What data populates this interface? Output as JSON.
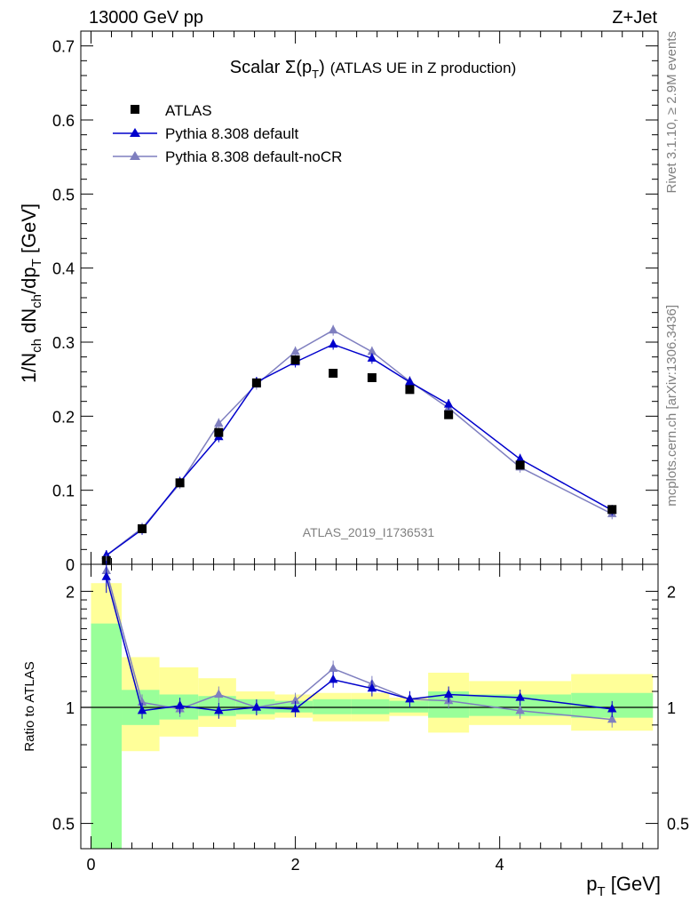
{
  "header": {
    "left": "13000 GeV pp",
    "right": "Z+Jet"
  },
  "side_text": {
    "rivet": "Rivet 3.1.10, ≥ 2.9M events",
    "mcplots": "mcplots.cern.ch [arXiv:1306.3436]"
  },
  "title_main": "Scalar Σ(p",
  "title_sub": "T",
  "title_close": ")",
  "title_rest": "(ATLAS UE in Z production)",
  "watermark": "ATLAS_2019_I1736531",
  "ylabel_top": {
    "a": "1/N",
    "b": "ch",
    "c": " dN",
    "d": "ch",
    "e": "/dp",
    "f": "T",
    "g": " [GeV]"
  },
  "ylabel_bottom": "Ratio to ATLAS",
  "xlabel": {
    "a": "p",
    "b": "T",
    "c": " [GeV]"
  },
  "colors": {
    "data": "#000000",
    "pythia_default": "#0000cc",
    "pythia_nocr": "#7f7fbf",
    "band_inner": "#99ff99",
    "band_outer": "#ffff99"
  },
  "chart_data": [
    {
      "type": "scatter",
      "xlim": [
        -0.1,
        5.55
      ],
      "ylim": [
        0,
        0.72
      ],
      "yticks": [
        "0",
        "0.1",
        "0.2",
        "0.3",
        "0.4",
        "0.5",
        "0.6",
        "0.7"
      ],
      "legend_position": "top-left",
      "legend": [
        "ATLAS",
        "Pythia 8.308 default",
        "Pythia 8.308 default-noCR"
      ],
      "x": [
        0.15,
        0.5,
        0.87,
        1.25,
        1.62,
        2.0,
        2.37,
        2.75,
        3.12,
        3.5,
        4.2,
        5.1
      ],
      "series": [
        {
          "name": "ATLAS",
          "values": [
            0.005,
            0.048,
            0.11,
            0.178,
            0.245,
            0.276,
            0.258,
            0.252,
            0.236,
            0.202,
            0.134,
            0.074
          ]
        },
        {
          "name": "Pythia 8.308 default",
          "values": [
            0.012,
            0.047,
            0.111,
            0.172,
            0.246,
            0.273,
            0.297,
            0.278,
            0.246,
            0.216,
            0.142,
            0.073
          ]
        },
        {
          "name": "Pythia 8.308 default-noCR",
          "values": [
            0.012,
            0.049,
            0.109,
            0.19,
            0.243,
            0.287,
            0.316,
            0.287,
            0.247,
            0.211,
            0.131,
            0.068
          ]
        }
      ]
    },
    {
      "type": "line",
      "ylabel": "Ratio to ATLAS",
      "xlabel": "p_T [GeV]",
      "xticks": [
        "0",
        "2",
        "4"
      ],
      "yticks": [
        "0.5",
        "1",
        "2"
      ],
      "ylim": [
        0.43,
        2.35
      ],
      "ylog": true,
      "x": [
        0.15,
        0.5,
        0.87,
        1.25,
        1.62,
        2.0,
        2.37,
        2.75,
        3.12,
        3.5,
        4.2,
        5.1
      ],
      "bins": [
        [
          0.0,
          0.3
        ],
        [
          0.3,
          0.67
        ],
        [
          0.67,
          1.05
        ],
        [
          1.05,
          1.42
        ],
        [
          1.42,
          1.8
        ],
        [
          1.8,
          2.17
        ],
        [
          2.17,
          2.55
        ],
        [
          2.55,
          2.92
        ],
        [
          2.92,
          3.3
        ],
        [
          3.3,
          3.7
        ],
        [
          3.7,
          4.7
        ],
        [
          4.7,
          5.5
        ]
      ],
      "band_inner": [
        [
          0.4,
          1.65
        ],
        [
          0.9,
          1.11
        ],
        [
          0.93,
          1.08
        ],
        [
          0.95,
          1.07
        ],
        [
          0.96,
          1.05
        ],
        [
          0.97,
          1.04
        ],
        [
          0.96,
          1.05
        ],
        [
          0.96,
          1.05
        ],
        [
          0.97,
          1.04
        ],
        [
          0.94,
          1.1
        ],
        [
          0.95,
          1.08
        ],
        [
          0.94,
          1.09
        ]
      ],
      "band_outer": [
        [
          0.36,
          2.1
        ],
        [
          0.77,
          1.35
        ],
        [
          0.84,
          1.27
        ],
        [
          0.89,
          1.19
        ],
        [
          0.93,
          1.1
        ],
        [
          0.94,
          1.08
        ],
        [
          0.92,
          1.09
        ],
        [
          0.92,
          1.09
        ],
        [
          0.95,
          1.06
        ],
        [
          0.86,
          1.23
        ],
        [
          0.9,
          1.17
        ],
        [
          0.87,
          1.22
        ]
      ],
      "series": [
        {
          "name": "Pythia 8.308 default",
          "values": [
            2.18,
            0.98,
            1.01,
            0.98,
            1.0,
            0.99,
            1.18,
            1.12,
            1.05,
            1.08,
            1.06,
            0.99
          ]
        },
        {
          "name": "Pythia 8.308 default-noCR",
          "values": [
            2.26,
            1.03,
            0.99,
            1.08,
            1.0,
            1.04,
            1.26,
            1.15,
            1.05,
            1.04,
            0.98,
            0.93
          ]
        }
      ]
    }
  ]
}
